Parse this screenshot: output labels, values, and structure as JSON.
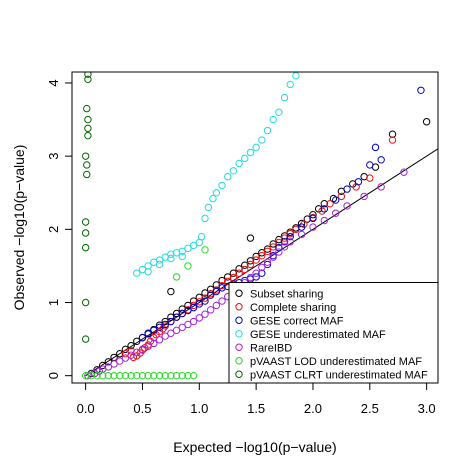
{
  "chart_data": {
    "type": "scatter",
    "title": "",
    "xlabel": "Expected −log10(p−value)",
    "ylabel": "Observed −log10(p−value)",
    "xlim": [
      -0.12,
      3.1
    ],
    "ylim": [
      -0.1,
      4.15
    ],
    "x_ticks": [
      {
        "value": 0.0,
        "label": "0.0"
      },
      {
        "value": 0.5,
        "label": "0.5"
      },
      {
        "value": 1.0,
        "label": "1.0"
      },
      {
        "value": 1.5,
        "label": "1.5"
      },
      {
        "value": 2.0,
        "label": "2.0"
      },
      {
        "value": 2.5,
        "label": "2.5"
      },
      {
        "value": 3.0,
        "label": "3.0"
      }
    ],
    "y_ticks": [
      {
        "value": 0,
        "label": "0"
      },
      {
        "value": 1,
        "label": "1"
      },
      {
        "value": 2,
        "label": "2"
      },
      {
        "value": 3,
        "label": "3"
      },
      {
        "value": 4,
        "label": "4"
      }
    ],
    "reference_line": {
      "x": [
        0,
        3.1
      ],
      "y": [
        0,
        3.1
      ],
      "color": "#000000"
    },
    "legend": {
      "position": "bottom-right"
    },
    "series": [
      {
        "name": "Subset sharing",
        "color": "#000000",
        "points": [
          [
            0.05,
            0.03
          ],
          [
            0.1,
            0.08
          ],
          [
            0.15,
            0.14
          ],
          [
            0.2,
            0.19
          ],
          [
            0.25,
            0.25
          ],
          [
            0.3,
            0.3
          ],
          [
            0.35,
            0.36
          ],
          [
            0.4,
            0.41
          ],
          [
            0.45,
            0.47
          ],
          [
            0.5,
            0.52
          ],
          [
            0.55,
            0.58
          ],
          [
            0.6,
            0.63
          ],
          [
            0.65,
            0.69
          ],
          [
            0.7,
            0.74
          ],
          [
            0.75,
            0.8
          ],
          [
            0.8,
            0.85
          ],
          [
            0.85,
            0.91
          ],
          [
            0.9,
            0.96
          ],
          [
            0.95,
            1.02
          ],
          [
            1.0,
            1.07
          ],
          [
            1.05,
            1.13
          ],
          [
            1.1,
            1.18
          ],
          [
            1.15,
            1.24
          ],
          [
            1.2,
            1.3
          ],
          [
            1.25,
            1.35
          ],
          [
            1.3,
            1.4
          ],
          [
            1.35,
            1.46
          ],
          [
            1.4,
            1.51
          ],
          [
            1.45,
            1.57
          ],
          [
            1.5,
            1.63
          ],
          [
            1.55,
            1.68
          ],
          [
            1.6,
            1.73
          ],
          [
            1.65,
            1.8
          ],
          [
            1.7,
            1.86
          ],
          [
            1.75,
            1.91
          ],
          [
            1.8,
            1.96
          ],
          [
            1.85,
            2.02
          ],
          [
            1.9,
            2.08
          ],
          [
            1.95,
            2.14
          ],
          [
            2.0,
            2.2
          ],
          [
            2.05,
            2.28
          ],
          [
            2.1,
            2.35
          ],
          [
            2.18,
            2.42
          ],
          [
            2.25,
            2.52
          ],
          [
            2.35,
            2.62
          ],
          [
            2.45,
            2.72
          ],
          [
            2.55,
            2.85
          ],
          [
            2.7,
            3.3
          ],
          [
            3.0,
            3.47
          ],
          [
            0.75,
            1.15
          ],
          [
            1.45,
            1.88
          ]
        ]
      },
      {
        "name": "Complete sharing",
        "color": "#ee1111",
        "points": [
          [
            0.45,
            0.27
          ],
          [
            0.48,
            0.31
          ],
          [
            0.5,
            0.35
          ],
          [
            0.52,
            0.38
          ],
          [
            0.55,
            0.42
          ],
          [
            0.57,
            0.47
          ],
          [
            0.6,
            0.52
          ],
          [
            0.62,
            0.56
          ],
          [
            0.65,
            0.6
          ],
          [
            0.68,
            0.64
          ],
          [
            0.7,
            0.68
          ],
          [
            0.75,
            0.74
          ],
          [
            0.8,
            0.8
          ],
          [
            0.85,
            0.85
          ],
          [
            0.9,
            0.9
          ],
          [
            0.95,
            0.96
          ],
          [
            1.0,
            1.01
          ],
          [
            1.05,
            1.06
          ],
          [
            1.1,
            1.12
          ],
          [
            1.15,
            1.17
          ],
          [
            1.2,
            1.23
          ],
          [
            1.25,
            1.29
          ],
          [
            1.3,
            1.34
          ],
          [
            1.35,
            1.4
          ],
          [
            1.4,
            1.45
          ],
          [
            1.45,
            1.52
          ],
          [
            1.5,
            1.58
          ],
          [
            1.55,
            1.64
          ],
          [
            1.6,
            1.7
          ],
          [
            1.65,
            1.76
          ],
          [
            1.7,
            1.82
          ],
          [
            1.75,
            1.88
          ],
          [
            1.8,
            1.94
          ],
          [
            1.85,
            2.0
          ],
          [
            1.92,
            2.07
          ],
          [
            2.0,
            2.16
          ],
          [
            2.08,
            2.25
          ],
          [
            2.15,
            2.35
          ],
          [
            2.25,
            2.45
          ],
          [
            2.38,
            2.58
          ],
          [
            2.5,
            2.7
          ],
          [
            2.7,
            3.22
          ],
          [
            0.35,
            0.3
          ],
          [
            0.4,
            0.34
          ],
          [
            0.42,
            0.25
          ]
        ]
      },
      {
        "name": "GESE correct MAF",
        "color": "#0000cc",
        "points": [
          [
            0.5,
            0.52
          ],
          [
            0.55,
            0.57
          ],
          [
            0.6,
            0.62
          ],
          [
            0.65,
            0.66
          ],
          [
            0.7,
            0.7
          ],
          [
            0.75,
            0.74
          ],
          [
            0.8,
            0.8
          ],
          [
            0.85,
            0.85
          ],
          [
            0.9,
            0.89
          ],
          [
            0.95,
            0.93
          ],
          [
            1.0,
            0.98
          ],
          [
            1.05,
            1.02
          ],
          [
            1.1,
            1.1
          ],
          [
            1.15,
            1.15
          ],
          [
            1.2,
            1.2
          ],
          [
            1.25,
            1.22
          ],
          [
            1.3,
            1.25
          ],
          [
            1.35,
            1.27
          ],
          [
            1.4,
            1.3
          ],
          [
            1.45,
            1.32
          ],
          [
            1.5,
            1.35
          ],
          [
            1.55,
            1.4
          ],
          [
            1.6,
            1.52
          ],
          [
            1.65,
            1.64
          ],
          [
            1.7,
            1.75
          ],
          [
            1.75,
            1.83
          ],
          [
            1.8,
            1.9
          ],
          [
            1.9,
            2.03
          ],
          [
            2.0,
            2.15
          ],
          [
            2.1,
            2.28
          ],
          [
            2.2,
            2.4
          ],
          [
            2.3,
            2.55
          ],
          [
            2.4,
            2.65
          ],
          [
            2.5,
            2.88
          ],
          [
            2.6,
            2.95
          ],
          [
            2.95,
            3.9
          ],
          [
            2.55,
            3.12
          ]
        ]
      },
      {
        "name": "GESE underestimated MAF",
        "color": "#22dddd",
        "points": [
          [
            0.45,
            1.4
          ],
          [
            0.5,
            1.45
          ],
          [
            0.55,
            1.5
          ],
          [
            0.6,
            1.55
          ],
          [
            0.65,
            1.58
          ],
          [
            0.7,
            1.62
          ],
          [
            0.75,
            1.66
          ],
          [
            0.8,
            1.68
          ],
          [
            0.85,
            1.7
          ],
          [
            0.9,
            1.74
          ],
          [
            0.95,
            1.78
          ],
          [
            1.0,
            1.82
          ],
          [
            1.02,
            1.9
          ],
          [
            1.05,
            2.15
          ],
          [
            1.08,
            2.3
          ],
          [
            1.12,
            2.42
          ],
          [
            1.15,
            2.5
          ],
          [
            1.2,
            2.6
          ],
          [
            1.25,
            2.72
          ],
          [
            1.3,
            2.8
          ],
          [
            1.35,
            2.9
          ],
          [
            1.4,
            2.97
          ],
          [
            1.45,
            3.05
          ],
          [
            1.5,
            3.12
          ],
          [
            1.55,
            3.22
          ],
          [
            1.6,
            3.35
          ],
          [
            1.65,
            3.5
          ],
          [
            1.7,
            3.6
          ],
          [
            1.75,
            3.8
          ],
          [
            1.8,
            3.98
          ],
          [
            1.85,
            4.1
          ],
          [
            0.55,
            1.42
          ],
          [
            0.65,
            1.52
          ],
          [
            0.75,
            1.6
          ],
          [
            0.85,
            1.63
          ]
        ]
      },
      {
        "name": "RareIBD",
        "color": "#aa22dd",
        "points": [
          [
            0.02,
            0.0
          ],
          [
            0.08,
            0.03
          ],
          [
            0.12,
            0.06
          ],
          [
            0.15,
            0.09
          ],
          [
            0.2,
            0.12
          ],
          [
            0.25,
            0.16
          ],
          [
            0.3,
            0.2
          ],
          [
            0.35,
            0.24
          ],
          [
            0.4,
            0.28
          ],
          [
            0.45,
            0.32
          ],
          [
            0.5,
            0.36
          ],
          [
            0.55,
            0.4
          ],
          [
            0.6,
            0.44
          ],
          [
            0.65,
            0.49
          ],
          [
            0.7,
            0.54
          ],
          [
            0.75,
            0.58
          ],
          [
            0.8,
            0.62
          ],
          [
            0.85,
            0.66
          ],
          [
            0.9,
            0.7
          ],
          [
            0.95,
            0.74
          ],
          [
            1.0,
            0.79
          ],
          [
            1.05,
            0.84
          ],
          [
            1.1,
            0.9
          ],
          [
            1.15,
            0.96
          ],
          [
            1.2,
            1.02
          ],
          [
            1.25,
            1.08
          ],
          [
            1.3,
            1.14
          ],
          [
            1.35,
            1.2
          ],
          [
            1.4,
            1.27
          ],
          [
            1.45,
            1.34
          ],
          [
            1.5,
            1.4
          ],
          [
            1.55,
            1.48
          ],
          [
            1.6,
            1.55
          ],
          [
            1.65,
            1.62
          ],
          [
            1.7,
            1.69
          ],
          [
            1.75,
            1.76
          ],
          [
            1.8,
            1.83
          ],
          [
            1.9,
            1.93
          ],
          [
            2.0,
            2.03
          ],
          [
            2.1,
            2.12
          ],
          [
            2.2,
            2.22
          ],
          [
            2.3,
            2.32
          ],
          [
            2.45,
            2.45
          ],
          [
            2.6,
            2.58
          ],
          [
            2.8,
            2.78
          ]
        ]
      },
      {
        "name": "pVAAST LOD underestimated MAF",
        "color": "#22dd22",
        "points": [
          [
            0.0,
            0.0
          ],
          [
            0.05,
            0.0
          ],
          [
            0.1,
            0.0
          ],
          [
            0.15,
            0.0
          ],
          [
            0.2,
            0.0
          ],
          [
            0.25,
            0.0
          ],
          [
            0.3,
            0.0
          ],
          [
            0.35,
            0.0
          ],
          [
            0.4,
            0.0
          ],
          [
            0.45,
            0.0
          ],
          [
            0.5,
            0.0
          ],
          [
            0.55,
            0.0
          ],
          [
            0.6,
            0.0
          ],
          [
            0.65,
            0.0
          ],
          [
            0.7,
            0.0
          ],
          [
            0.75,
            0.0
          ],
          [
            0.8,
            0.0
          ],
          [
            0.85,
            0.0
          ],
          [
            0.9,
            0.0
          ],
          [
            0.95,
            0.0
          ],
          [
            0.8,
            1.35
          ],
          [
            0.9,
            1.5
          ],
          [
            1.05,
            1.72
          ]
        ]
      },
      {
        "name": "pVAAST CLRT underestimated MAF",
        "color": "#006600",
        "points": [
          [
            0.0,
            0.5
          ],
          [
            0.0,
            1.0
          ],
          [
            0.0,
            1.75
          ],
          [
            0.0,
            1.95
          ],
          [
            0.0,
            2.1
          ],
          [
            0.01,
            2.75
          ],
          [
            0.01,
            2.88
          ],
          [
            0.0,
            3.0
          ],
          [
            0.02,
            3.28
          ],
          [
            0.02,
            3.38
          ],
          [
            0.02,
            3.5
          ],
          [
            0.01,
            3.65
          ],
          [
            0.02,
            4.05
          ],
          [
            0.02,
            4.12
          ]
        ]
      }
    ]
  }
}
